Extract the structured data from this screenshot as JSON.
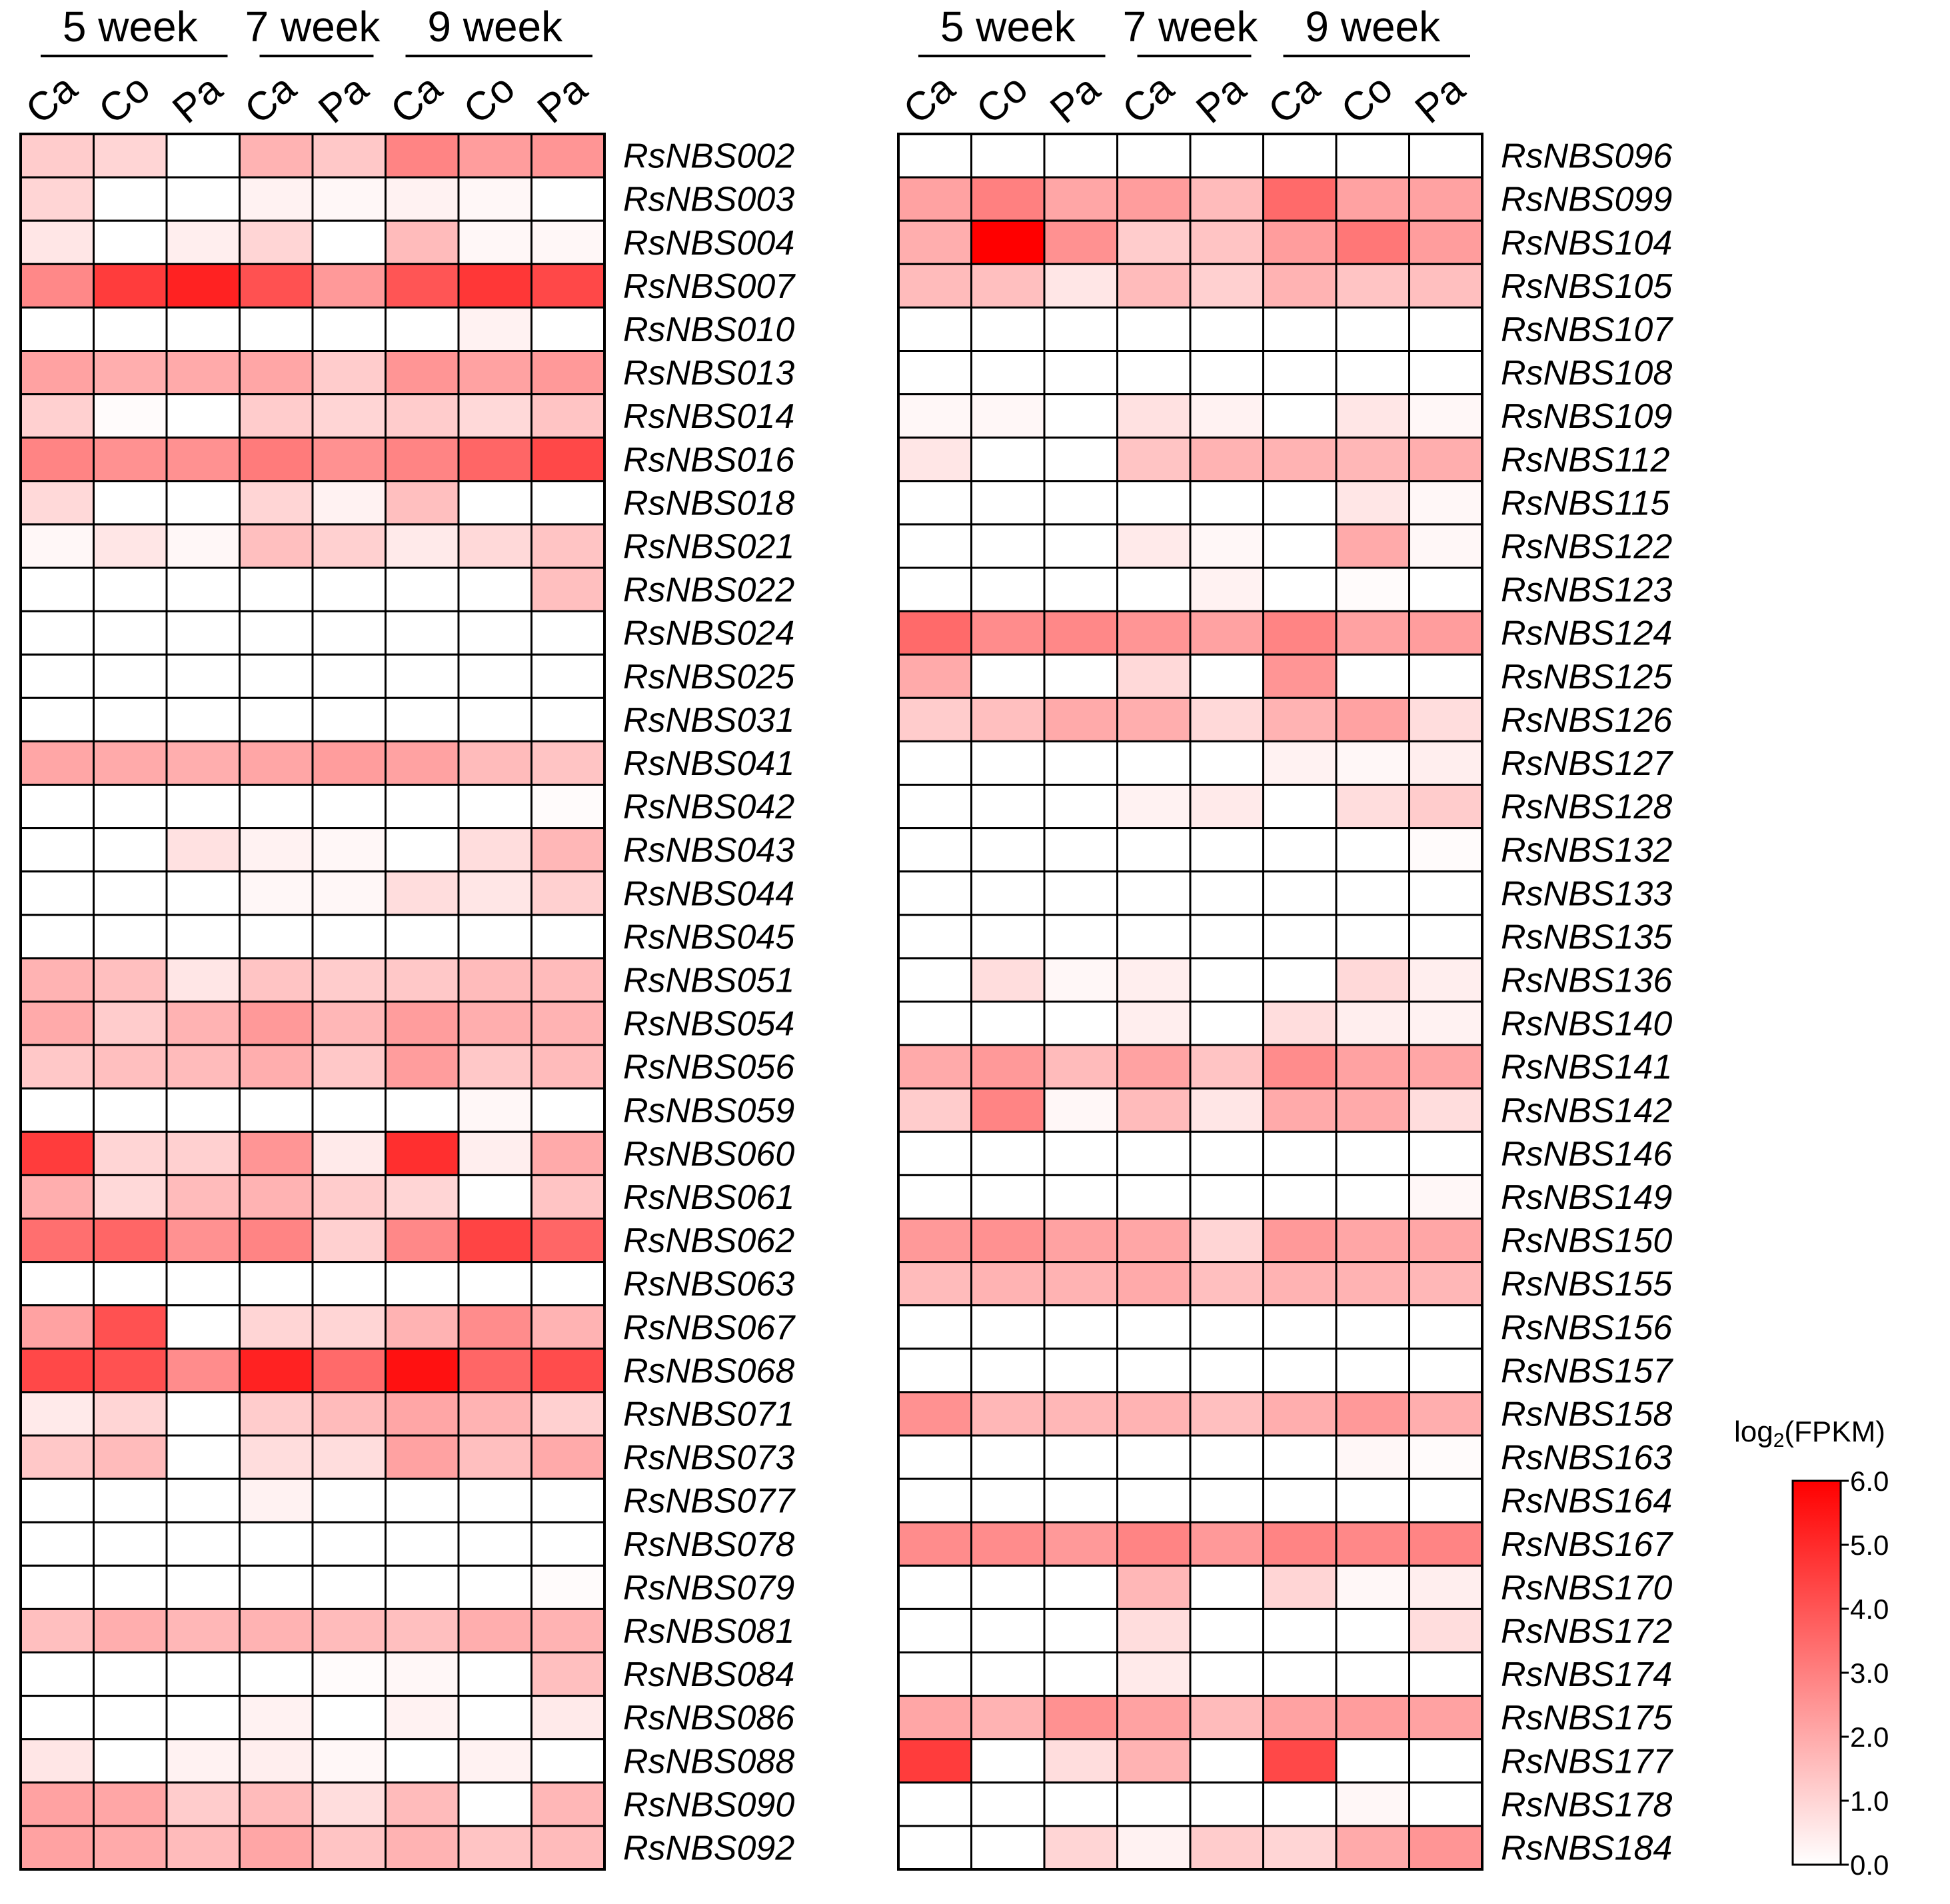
{
  "chart_data": {
    "type": "heatmap",
    "legend": {
      "title_prefix": "log",
      "title_subscript": "2",
      "title_suffix": "(FPKM)",
      "min": 0.0,
      "max": 6.0,
      "ticks": [
        "0.0",
        "1.0",
        "2.0",
        "3.0",
        "4.0",
        "5.0",
        "6.0"
      ],
      "color_low": "#ffffff",
      "color_high": "#ff0000"
    },
    "groups": [
      {
        "label": "5 week",
        "columns": [
          "Ca",
          "Co",
          "Pa"
        ]
      },
      {
        "label": "7 week",
        "columns": [
          "Ca",
          "Pa"
        ]
      },
      {
        "label": "9 week",
        "columns": [
          "Ca",
          "Co",
          "Pa"
        ]
      }
    ],
    "columns": [
      "Ca",
      "Co",
      "Pa",
      "Ca",
      "Pa",
      "Ca",
      "Co",
      "Pa"
    ],
    "panels": [
      {
        "genes": [
          "RsNBS002",
          "RsNBS003",
          "RsNBS004",
          "RsNBS007",
          "RsNBS010",
          "RsNBS013",
          "RsNBS014",
          "RsNBS016",
          "RsNBS018",
          "RsNBS021",
          "RsNBS022",
          "RsNBS024",
          "RsNBS025",
          "RsNBS031",
          "RsNBS041",
          "RsNBS042",
          "RsNBS043",
          "RsNBS044",
          "RsNBS045",
          "RsNBS051",
          "RsNBS054",
          "RsNBS056",
          "RsNBS059",
          "RsNBS060",
          "RsNBS061",
          "RsNBS062",
          "RsNBS063",
          "RsNBS067",
          "RsNBS068",
          "RsNBS071",
          "RsNBS073",
          "RsNBS077",
          "RsNBS078",
          "RsNBS079",
          "RsNBS081",
          "RsNBS084",
          "RsNBS086",
          "RsNBS088",
          "RsNBS090",
          "RsNBS092"
        ],
        "values": [
          [
            1.2,
            1.0,
            0.0,
            1.8,
            1.3,
            2.9,
            2.3,
            2.5
          ],
          [
            1.0,
            0.0,
            0.0,
            0.3,
            0.2,
            0.3,
            0.2,
            0.0
          ],
          [
            0.6,
            0.0,
            0.4,
            1.0,
            0.0,
            1.6,
            0.2,
            0.2
          ],
          [
            2.8,
            4.6,
            5.2,
            4.1,
            2.4,
            4.0,
            4.7,
            4.3
          ],
          [
            0.0,
            0.0,
            0.0,
            0.0,
            0.0,
            0.0,
            0.3,
            0.0
          ],
          [
            2.2,
            1.9,
            2.0,
            2.1,
            1.2,
            2.5,
            2.2,
            2.4
          ],
          [
            1.1,
            0.1,
            0.0,
            1.2,
            1.0,
            1.2,
            0.9,
            1.4
          ],
          [
            2.9,
            2.6,
            2.6,
            3.1,
            2.6,
            2.9,
            3.6,
            4.3
          ],
          [
            0.9,
            0.0,
            0.0,
            1.0,
            0.3,
            1.5,
            0.0,
            0.0
          ],
          [
            0.2,
            0.6,
            0.2,
            1.5,
            1.1,
            0.5,
            0.9,
            1.4
          ],
          [
            0.0,
            0.0,
            0.0,
            0.0,
            0.0,
            0.0,
            0.0,
            1.5
          ],
          [
            0.0,
            0.0,
            0.0,
            0.0,
            0.0,
            0.0,
            0.0,
            0.0
          ],
          [
            0.0,
            0.0,
            0.0,
            0.0,
            0.0,
            0.0,
            0.0,
            0.0
          ],
          [
            0.0,
            0.0,
            0.0,
            0.0,
            0.0,
            0.0,
            0.0,
            0.0
          ],
          [
            2.1,
            2.0,
            1.9,
            2.1,
            2.3,
            2.2,
            1.6,
            1.4
          ],
          [
            0.0,
            0.0,
            0.0,
            0.0,
            0.0,
            0.0,
            0.0,
            0.1
          ],
          [
            0.0,
            0.0,
            0.7,
            0.3,
            0.2,
            0.0,
            0.8,
            1.7
          ],
          [
            0.0,
            0.0,
            0.0,
            0.2,
            0.2,
            0.8,
            0.6,
            1.1
          ],
          [
            0.0,
            0.0,
            0.0,
            0.0,
            0.0,
            0.0,
            0.0,
            0.0
          ],
          [
            1.8,
            1.5,
            0.6,
            1.4,
            1.2,
            1.3,
            1.6,
            1.6
          ],
          [
            2.0,
            1.2,
            1.8,
            2.4,
            1.7,
            2.3,
            1.9,
            1.8
          ],
          [
            1.3,
            1.5,
            1.6,
            1.9,
            1.3,
            2.3,
            1.3,
            1.6
          ],
          [
            0.0,
            0.0,
            0.0,
            0.0,
            0.0,
            0.0,
            0.2,
            0.0
          ],
          [
            4.6,
            1.0,
            1.1,
            2.5,
            0.5,
            4.9,
            0.4,
            2.0
          ],
          [
            1.9,
            0.9,
            1.6,
            1.8,
            1.2,
            1.0,
            0.0,
            1.4
          ],
          [
            3.4,
            3.6,
            2.6,
            2.9,
            1.1,
            2.8,
            4.4,
            3.6
          ],
          [
            0.0,
            0.0,
            0.0,
            0.0,
            0.0,
            0.0,
            0.0,
            0.0
          ],
          [
            2.2,
            4.1,
            0.0,
            1.0,
            1.0,
            1.8,
            2.7,
            1.8
          ],
          [
            4.3,
            4.1,
            2.7,
            5.2,
            3.5,
            5.6,
            3.6,
            4.2
          ],
          [
            0.5,
            1.0,
            0.0,
            1.2,
            1.6,
            2.1,
            1.8,
            1.1
          ],
          [
            1.3,
            1.6,
            0.0,
            0.8,
            0.8,
            2.2,
            1.5,
            2.0
          ],
          [
            0.0,
            0.0,
            0.0,
            0.3,
            0.0,
            0.0,
            0.0,
            0.0
          ],
          [
            0.0,
            0.0,
            0.0,
            0.0,
            0.0,
            0.0,
            0.0,
            0.0
          ],
          [
            0.0,
            0.0,
            0.0,
            0.0,
            0.0,
            0.0,
            0.0,
            0.1
          ],
          [
            1.5,
            1.9,
            1.7,
            1.8,
            1.6,
            1.5,
            1.9,
            1.8
          ],
          [
            0.0,
            0.0,
            0.0,
            0.0,
            0.1,
            0.2,
            0.0,
            1.5
          ],
          [
            0.0,
            0.0,
            0.0,
            0.3,
            0.0,
            0.3,
            0.0,
            0.5
          ],
          [
            0.6,
            0.0,
            0.3,
            0.4,
            0.2,
            0.0,
            0.3,
            0.0
          ],
          [
            2.2,
            2.1,
            1.2,
            1.6,
            0.8,
            1.6,
            0.0,
            1.7
          ],
          [
            2.2,
            2.0,
            1.6,
            2.1,
            1.4,
            1.8,
            1.4,
            1.6
          ]
        ]
      },
      {
        "genes": [
          "RsNBS096",
          "RsNBS099",
          "RsNBS104",
          "RsNBS105",
          "RsNBS107",
          "RsNBS108",
          "RsNBS109",
          "RsNBS112",
          "RsNBS115",
          "RsNBS122",
          "RsNBS123",
          "RsNBS124",
          "RsNBS125",
          "RsNBS126",
          "RsNBS127",
          "RsNBS128",
          "RsNBS132",
          "RsNBS133",
          "RsNBS135",
          "RsNBS136",
          "RsNBS140",
          "RsNBS141",
          "RsNBS142",
          "RsNBS146",
          "RsNBS149",
          "RsNBS150",
          "RsNBS155",
          "RsNBS156",
          "RsNBS157",
          "RsNBS158",
          "RsNBS163",
          "RsNBS164",
          "RsNBS167",
          "RsNBS170",
          "RsNBS172",
          "RsNBS174",
          "RsNBS175",
          "RsNBS177",
          "RsNBS178",
          "RsNBS184"
        ],
        "values": [
          [
            0.0,
            0.0,
            0.0,
            0.0,
            0.0,
            0.0,
            0.0,
            0.0
          ],
          [
            2.2,
            3.0,
            2.1,
            2.3,
            1.6,
            3.5,
            2.2,
            2.2
          ],
          [
            1.9,
            6.0,
            2.6,
            1.2,
            1.4,
            2.3,
            3.2,
            2.3
          ],
          [
            1.6,
            1.5,
            0.6,
            1.6,
            1.1,
            1.8,
            1.4,
            1.5
          ],
          [
            0.0,
            0.0,
            0.0,
            0.0,
            0.0,
            0.0,
            0.0,
            0.0
          ],
          [
            0.0,
            0.0,
            0.0,
            0.0,
            0.0,
            0.0,
            0.0,
            0.0
          ],
          [
            0.2,
            0.2,
            0.0,
            0.7,
            0.3,
            0.0,
            0.6,
            0.2
          ],
          [
            0.6,
            0.0,
            0.0,
            1.4,
            1.8,
            1.8,
            1.7,
            1.9
          ],
          [
            0.0,
            0.0,
            0.0,
            0.0,
            0.0,
            0.0,
            0.6,
            0.2
          ],
          [
            0.0,
            0.0,
            0.0,
            0.5,
            0.2,
            0.0,
            2.0,
            0.2
          ],
          [
            0.0,
            0.0,
            0.0,
            0.0,
            0.3,
            0.0,
            0.1,
            0.0
          ],
          [
            3.5,
            2.7,
            2.8,
            2.5,
            2.2,
            2.9,
            2.2,
            2.3
          ],
          [
            2.0,
            0.0,
            0.0,
            0.9,
            0.0,
            2.5,
            0.0,
            0.0
          ],
          [
            1.2,
            1.5,
            2.0,
            1.9,
            0.9,
            1.8,
            2.2,
            0.8
          ],
          [
            0.0,
            0.0,
            0.0,
            0.0,
            0.0,
            0.3,
            0.2,
            0.4
          ],
          [
            0.0,
            0.0,
            0.0,
            0.3,
            0.5,
            0.0,
            0.8,
            1.2
          ],
          [
            0.0,
            0.0,
            0.0,
            0.0,
            0.0,
            0.0,
            0.0,
            0.1
          ],
          [
            0.0,
            0.0,
            0.0,
            0.0,
            0.0,
            0.0,
            0.0,
            0.0
          ],
          [
            0.0,
            0.0,
            0.0,
            0.0,
            0.0,
            0.0,
            0.0,
            0.0
          ],
          [
            0.0,
            0.8,
            0.2,
            0.4,
            0.0,
            0.0,
            0.9,
            0.4
          ],
          [
            0.0,
            0.0,
            0.0,
            0.4,
            0.0,
            0.8,
            0.4,
            0.3
          ],
          [
            2.0,
            2.4,
            1.6,
            2.2,
            1.4,
            2.7,
            2.2,
            2.1
          ],
          [
            1.2,
            2.9,
            0.2,
            1.6,
            0.6,
            2.0,
            2.0,
            0.8
          ],
          [
            0.0,
            0.0,
            0.0,
            0.0,
            0.0,
            0.0,
            0.0,
            0.0
          ],
          [
            0.0,
            0.0,
            0.0,
            0.0,
            0.0,
            0.0,
            0.0,
            0.2
          ],
          [
            2.4,
            2.6,
            2.2,
            2.1,
            1.0,
            2.4,
            2.1,
            2.1
          ],
          [
            1.6,
            1.8,
            1.8,
            2.0,
            1.5,
            1.8,
            1.8,
            1.7
          ],
          [
            0.0,
            0.0,
            0.0,
            0.0,
            0.0,
            0.0,
            0.0,
            0.0
          ],
          [
            0.0,
            0.0,
            0.0,
            0.0,
            0.0,
            0.0,
            0.0,
            0.0
          ],
          [
            2.6,
            1.7,
            1.7,
            1.8,
            1.5,
            1.9,
            2.4,
            1.9
          ],
          [
            0.0,
            0.0,
            0.0,
            0.0,
            0.0,
            0.0,
            0.2,
            0.1
          ],
          [
            0.0,
            0.0,
            0.0,
            0.0,
            0.0,
            0.0,
            0.0,
            0.0
          ],
          [
            2.7,
            2.7,
            2.4,
            2.9,
            2.4,
            2.9,
            2.8,
            2.9
          ],
          [
            0.0,
            0.0,
            0.0,
            1.7,
            0.0,
            1.0,
            0.2,
            0.4
          ],
          [
            0.0,
            0.0,
            0.0,
            0.8,
            0.0,
            0.0,
            0.0,
            0.8
          ],
          [
            0.0,
            0.0,
            0.0,
            0.5,
            0.0,
            0.0,
            0.0,
            0.0
          ],
          [
            2.1,
            1.8,
            2.6,
            2.2,
            1.6,
            2.2,
            2.3,
            2.2
          ],
          [
            4.6,
            0.0,
            0.8,
            1.8,
            0.0,
            4.3,
            0.0,
            0.0
          ],
          [
            0.0,
            0.0,
            0.0,
            0.0,
            0.0,
            0.0,
            0.2,
            0.0
          ],
          [
            0.0,
            0.0,
            1.0,
            0.3,
            1.2,
            1.0,
            2.0,
            2.5
          ]
        ]
      }
    ]
  }
}
